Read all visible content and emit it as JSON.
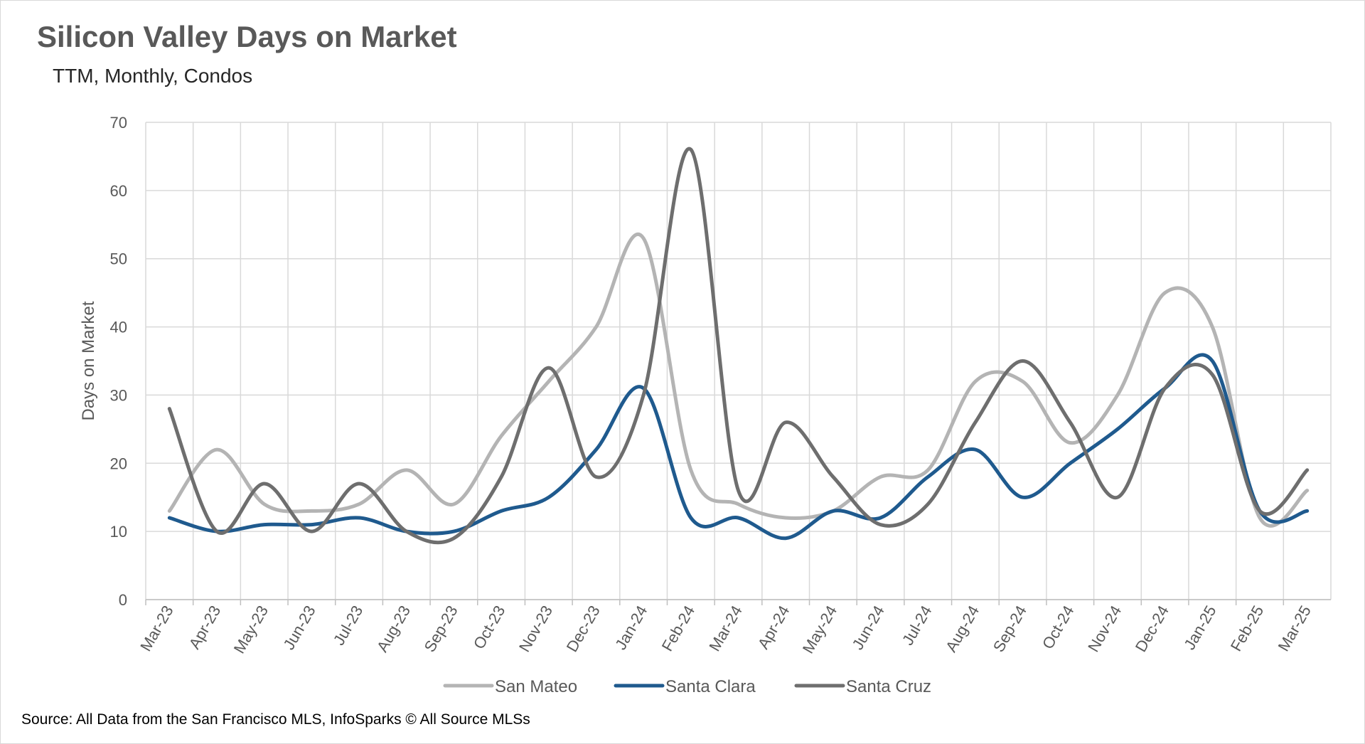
{
  "header": {
    "title": "Silicon Valley Days on Market",
    "subtitle": "TTM, Monthly, Condos"
  },
  "footer": {
    "source": "Source: All Data from the San Francisco MLS, InfoSparks © All Source MLSs"
  },
  "chart_data": {
    "type": "line",
    "title": "Silicon Valley Days on Market",
    "subtitle": "TTM, Monthly, Condos",
    "xlabel": "",
    "ylabel": "Days on Market",
    "ylim": [
      0,
      70
    ],
    "yticks": [
      0,
      10,
      20,
      30,
      40,
      50,
      60,
      70
    ],
    "grid": true,
    "legend_position": "bottom",
    "smoothed": true,
    "categories": [
      "Mar-23",
      "Apr-23",
      "May-23",
      "Jun-23",
      "Jul-23",
      "Aug-23",
      "Sep-23",
      "Oct-23",
      "Nov-23",
      "Dec-23",
      "Jan-24",
      "Feb-24",
      "Mar-24",
      "Apr-24",
      "May-24",
      "Jun-24",
      "Jul-24",
      "Aug-24",
      "Sep-24",
      "Oct-24",
      "Nov-24",
      "Dec-24",
      "Jan-25",
      "Feb-25",
      "Mar-25"
    ],
    "series": [
      {
        "name": "San Mateo",
        "color": "#b4b4b4",
        "values": [
          13,
          22,
          14,
          13,
          14,
          19,
          14,
          24,
          32,
          40,
          53,
          19,
          14,
          12,
          13,
          18,
          19,
          32,
          32,
          23,
          30,
          45,
          40,
          12,
          16
        ]
      },
      {
        "name": "Santa Clara",
        "color": "#1f5a8e",
        "values": [
          12,
          10,
          11,
          11,
          12,
          10,
          10,
          13,
          15,
          22,
          31,
          12,
          12,
          9,
          13,
          12,
          18,
          22,
          15,
          20,
          25,
          31,
          35,
          13,
          13
        ]
      },
      {
        "name": "Santa Cruz",
        "color": "#6e6e6e",
        "values": [
          28,
          10,
          17,
          10,
          17,
          10,
          9,
          18,
          34,
          18,
          30,
          66,
          16,
          26,
          18,
          11,
          14,
          26,
          35,
          26,
          15,
          31,
          33,
          13,
          19
        ]
      }
    ]
  }
}
